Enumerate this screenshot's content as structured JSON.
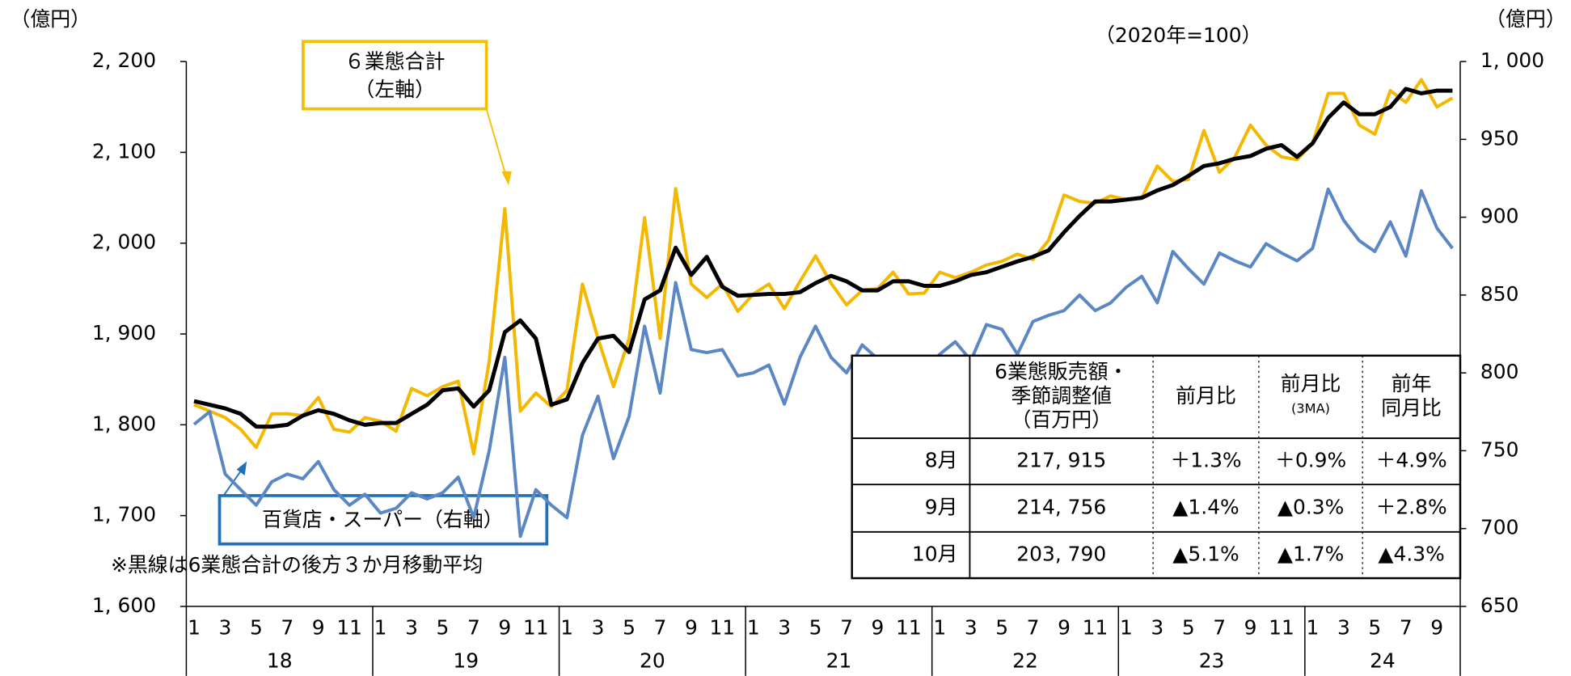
{
  "chart_data": {
    "type": "line",
    "annotations": {
      "left_unit": "（億円）",
      "right_unit": "（億円）",
      "index_base": "（2020年=100）",
      "callout_total": [
        "６業態合計",
        "（左軸）"
      ],
      "callout_dept": "百貨店・スーパー（右軸）",
      "note": "※黒線は6業態合計の後方３か月移動平均"
    },
    "categories": [
      "1",
      null,
      "3",
      null,
      "5",
      null,
      "7",
      null,
      "9",
      null,
      "11",
      null,
      "1",
      null,
      "3",
      null,
      "5",
      null,
      "7",
      null,
      "9",
      null,
      "11",
      null,
      "1",
      null,
      "3",
      null,
      "5",
      null,
      "7",
      null,
      "9",
      null,
      "11",
      null,
      "1",
      null,
      "3",
      null,
      "5",
      null,
      "7",
      null,
      "9",
      null,
      "11",
      null,
      "1",
      null,
      "3",
      null,
      "5",
      null,
      "7",
      null,
      "9",
      null,
      "11",
      null,
      "1",
      null,
      "3",
      null,
      "5",
      null,
      "7",
      null,
      "9",
      null,
      "11",
      null,
      "1",
      null,
      "3",
      null,
      "5",
      null,
      "7",
      null,
      "9",
      null
    ],
    "years": [
      "18",
      "19",
      "20",
      "21",
      "22",
      "23",
      "24"
    ],
    "series": [
      {
        "color": "#f5b800",
        "values": [
          1822,
          1815,
          1808,
          1795,
          1775,
          1812,
          1812,
          1810,
          1830,
          1795,
          1792,
          1808,
          1804,
          1793,
          1840,
          1832,
          1842,
          1848,
          1768,
          1870,
          2038,
          1815,
          1835,
          1820,
          1838,
          1955,
          1895,
          1842,
          1895,
          2028,
          1895,
          2060,
          1955,
          1940,
          1955,
          1925,
          1944,
          1955,
          1928,
          1958,
          1986,
          1956,
          1932,
          1948,
          1950,
          1968,
          1944,
          1945,
          1968,
          1962,
          1968,
          1976,
          1980,
          1988,
          1982,
          2003,
          2053,
          2046,
          2044,
          2052,
          2048,
          2050,
          2085,
          2068,
          2070,
          2124,
          2078,
          2095,
          2130,
          2108,
          2095,
          2092,
          2110,
          2165,
          2165,
          2130,
          2120,
          2168,
          2155,
          2180,
          2150,
          2160
        ]
      },
      {
        "color": "#5b87c4",
        "axis": "y2",
        "values": [
          767,
          775,
          735,
          725,
          715,
          730,
          735,
          732,
          743,
          725,
          715,
          722,
          710,
          713,
          723,
          719,
          723,
          733,
          707,
          750,
          810,
          695,
          725,
          715,
          707,
          760,
          785,
          745,
          772,
          830,
          787,
          858,
          815,
          813,
          815,
          798,
          800,
          805,
          780,
          810,
          830,
          810,
          800,
          818,
          809,
          810,
          810,
          802,
          812,
          820,
          808,
          831,
          828,
          812,
          833,
          837,
          840,
          850,
          840,
          845,
          855,
          862,
          845,
          878,
          867,
          857,
          877,
          872,
          868,
          883,
          877,
          872,
          880,
          918,
          898,
          885,
          878,
          897,
          875,
          917,
          893,
          880
        ]
      },
      {
        "color": "#000000",
        "values": [
          1826,
          1822,
          1818,
          1812,
          1798,
          1798,
          1800,
          1810,
          1816,
          1812,
          1805,
          1800,
          1802,
          1802,
          1812,
          1822,
          1838,
          1840,
          1820,
          1838,
          1902,
          1915,
          1895,
          1822,
          1828,
          1868,
          1895,
          1898,
          1880,
          1938,
          1948,
          1995,
          1965,
          1985,
          1952,
          1942,
          1943,
          1944,
          1944,
          1946,
          1956,
          1964,
          1958,
          1948,
          1948,
          1958,
          1958,
          1953,
          1953,
          1958,
          1965,
          1968,
          1974,
          1980,
          1985,
          1992,
          2012,
          2030,
          2046,
          2046,
          2048,
          2050,
          2058,
          2064,
          2074,
          2085,
          2088,
          2093,
          2096,
          2104,
          2108,
          2095,
          2110,
          2138,
          2155,
          2142,
          2142,
          2150,
          2170,
          2165,
          2168,
          2168
        ]
      }
    ],
    "ylim": [
      1600,
      2200
    ],
    "yticks": [
      {
        "value": 1600,
        "label": "1, 600"
      },
      {
        "value": 1700,
        "label": "1, 700"
      },
      {
        "value": 1800,
        "label": "1, 800"
      },
      {
        "value": 1900,
        "label": "1, 900"
      },
      {
        "value": 2000,
        "label": "2, 000"
      },
      {
        "value": 2100,
        "label": "2, 100"
      },
      {
        "value": 2200,
        "label": "2, 200"
      }
    ],
    "y2lim": [
      650,
      1000
    ],
    "y2ticks": [
      650,
      700,
      750,
      800,
      850,
      900,
      950,
      {
        "value": 1000,
        "label": "1, 000"
      }
    ],
    "table": {
      "header": [
        [
          "6業態販売額・",
          "季節調整値",
          "（百万円）"
        ],
        [
          "前月比"
        ],
        [
          "前月比",
          "(3MA)"
        ],
        [
          "前年",
          "同月比"
        ]
      ],
      "rows": [
        [
          "8月",
          "217, 915",
          "＋1.3%",
          "＋0.9%",
          "＋4.9%"
        ],
        [
          "9月",
          "214, 756",
          "▲1.4%",
          "▲0.3%",
          "＋2.8%"
        ],
        [
          "10月",
          "203, 790",
          "▲5.1%",
          "▲1.7%",
          "▲4.3%"
        ]
      ]
    }
  }
}
